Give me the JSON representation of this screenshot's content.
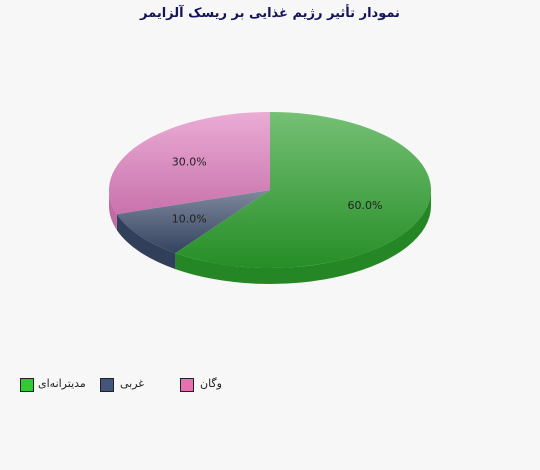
{
  "chart_data": {
    "type": "pie",
    "style": "3d",
    "title": "نمودار تأثیر رژیم غذایی بر ریسک آلزایمر",
    "slices": [
      {
        "name": "مدیترانه‌ای",
        "value": 60.0,
        "label": "60.0%",
        "color": "#2a9e2a"
      },
      {
        "name": "غربی",
        "value": 10.0,
        "label": "10.0%",
        "color": "#3a4a6a"
      },
      {
        "name": "وگان",
        "value": 30.0,
        "label": "30.0%",
        "color": "#df7fbf"
      }
    ],
    "legend_position": "bottom-left"
  }
}
